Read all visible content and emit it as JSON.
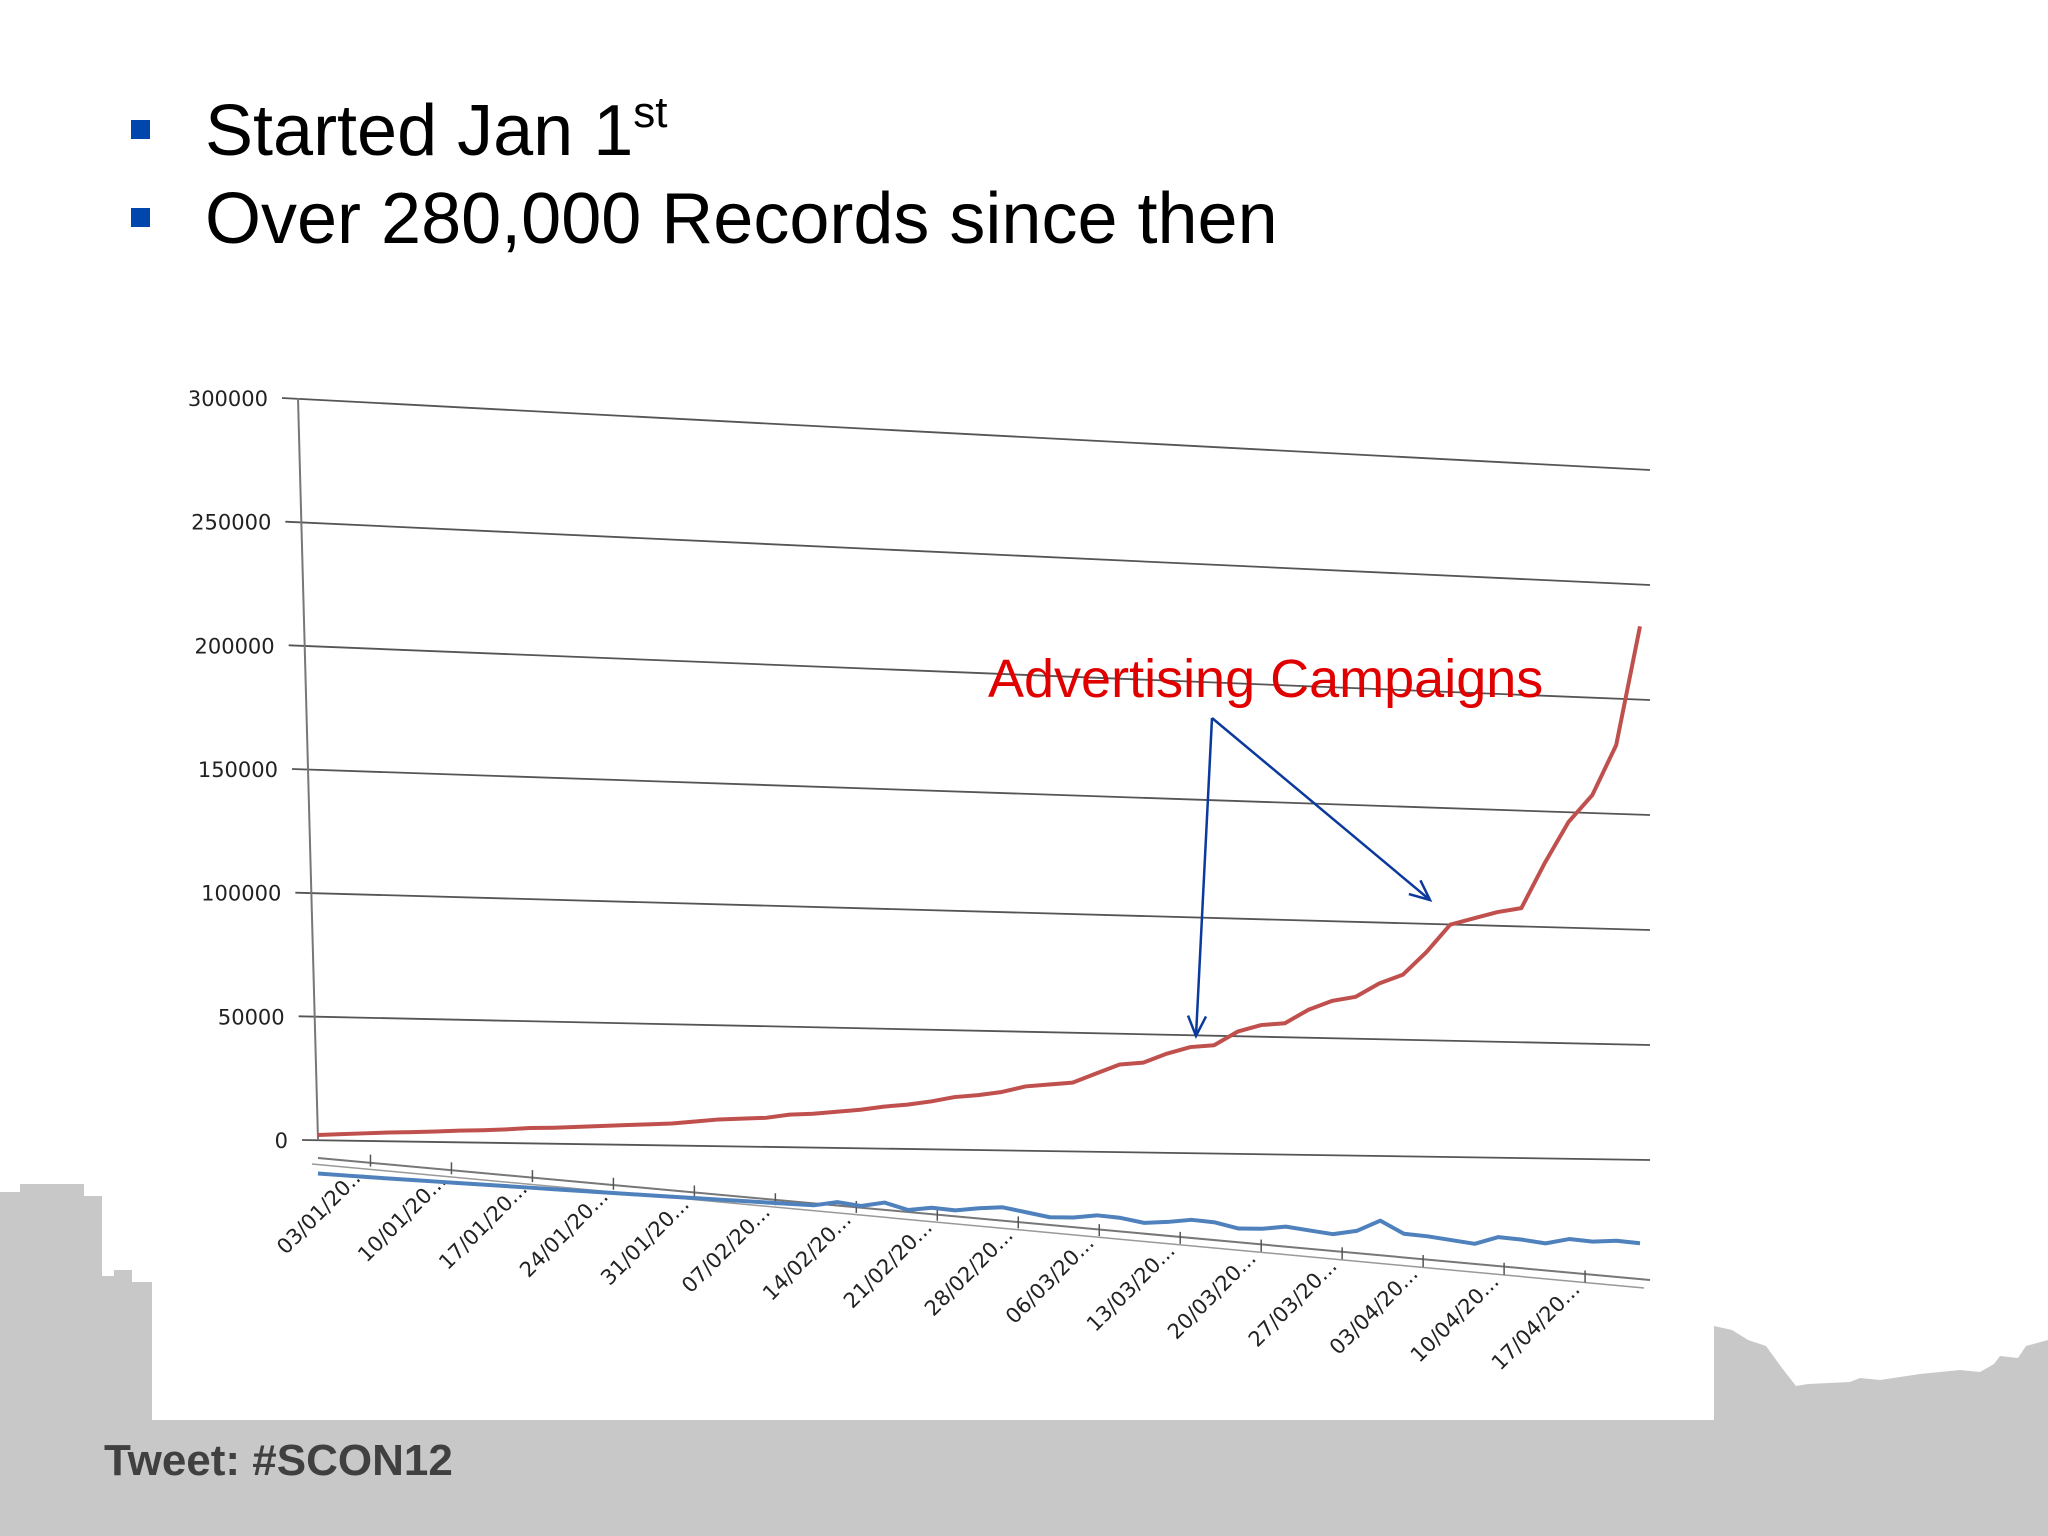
{
  "slide": {
    "bullets": [
      {
        "text": "Started Jan 1",
        "sup": "st"
      },
      {
        "text": "Over 280,000 Records since then",
        "sup": ""
      }
    ],
    "footer": "Tweet: #SCON12",
    "colors": {
      "bullet": "#0046ad",
      "footer": "#404040",
      "skyline": "#c8c8c8"
    }
  },
  "chart_data": {
    "type": "line",
    "title": "",
    "xlabel": "",
    "ylabel": "",
    "ylim": [
      0,
      300000
    ],
    "yticks": [
      0,
      50000,
      100000,
      150000,
      200000,
      250000,
      300000
    ],
    "grid": true,
    "perspective": "3d-tilted",
    "x_tick_labels": [
      "03/01/20...",
      "10/01/20...",
      "17/01/20...",
      "24/01/20...",
      "31/01/20...",
      "07/02/20...",
      "14/02/20...",
      "21/02/20...",
      "28/02/20...",
      "06/03/20...",
      "13/03/20...",
      "20/03/20...",
      "27/03/20...",
      "03/04/20...",
      "10/04/20...",
      "17/04/20..."
    ],
    "x": [
      0,
      2,
      4,
      6,
      8,
      10,
      12,
      14,
      16,
      18,
      20,
      22,
      24,
      26,
      28,
      30,
      32,
      34,
      36,
      38,
      40,
      42,
      44,
      46,
      48,
      50,
      52,
      54,
      56,
      58,
      60,
      62,
      64,
      66,
      68,
      70,
      72,
      74,
      76,
      78,
      80,
      82,
      84,
      86,
      88,
      90,
      92,
      94,
      96,
      98,
      100,
      102,
      104,
      106,
      108,
      110,
      112
    ],
    "series": [
      {
        "color": "#c0504d",
        "values": [
          2000,
          2500,
          3000,
          3500,
          3800,
          4200,
          4700,
          5000,
          5500,
          6200,
          6500,
          7000,
          7500,
          8000,
          8500,
          9000,
          10000,
          11000,
          11500,
          12000,
          13500,
          14000,
          15000,
          16000,
          17500,
          18500,
          20000,
          22000,
          23000,
          24500,
          27000,
          28000,
          29000,
          33000,
          37000,
          38000,
          42000,
          45000,
          46000,
          52000,
          55000,
          56000,
          62000,
          66000,
          68000,
          74000,
          78000,
          88000,
          100000,
          103000,
          106000,
          108000,
          128000,
          146000,
          158000,
          180000,
          232000
        ]
      },
      {
        "color": "#4f81bd",
        "values": [
          1000,
          900,
          800,
          700,
          650,
          600,
          550,
          500,
          450,
          400,
          350,
          300,
          250,
          200,
          180,
          160,
          150,
          140,
          130,
          120,
          110,
          100,
          2000,
          1000,
          3000,
          500,
          2000,
          1500,
          3000,
          4000,
          2500,
          1000,
          1500,
          3000,
          2500,
          1000,
          2000,
          3500,
          3000,
          1000,
          1500,
          3000,
          2000,
          1000,
          3000,
          8000,
          3000,
          2500,
          1500,
          500,
          4000,
          3500,
          2500,
          5000,
          4500,
          5500,
          5000
        ]
      }
    ],
    "annotations": [
      {
        "text": "Advertising Campaigns",
        "color": "#e00000",
        "arrows_to_x": [
          68,
          92
        ]
      }
    ]
  }
}
